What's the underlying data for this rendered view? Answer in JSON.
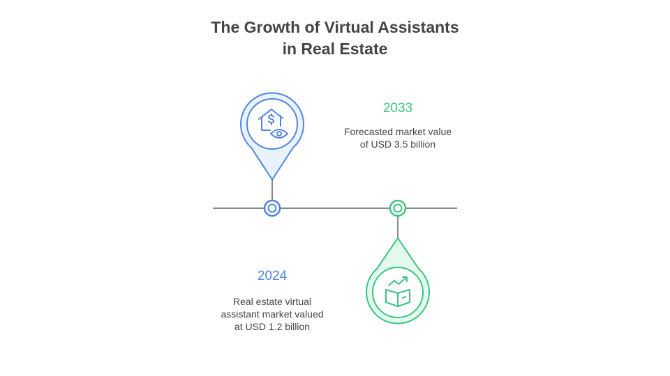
{
  "title_line1": "The Growth of Virtual Assistants",
  "title_line2": "in Real Estate",
  "colors": {
    "blue": "#4F86E0",
    "blue_fill": "#EAF2FE",
    "green": "#3CC480",
    "green_fill": "#E3FBEF",
    "line": "#8A8A8A"
  },
  "milestones": [
    {
      "year": "2024",
      "desc": [
        "Real estate virtual",
        "assistant market valued",
        "at USD 1.2 billion"
      ],
      "icon": "house-dollar-eye-icon"
    },
    {
      "year": "2033",
      "desc": [
        "Forecasted market value",
        "of USD 3.5 billion"
      ],
      "icon": "open-box-growth-icon"
    }
  ]
}
